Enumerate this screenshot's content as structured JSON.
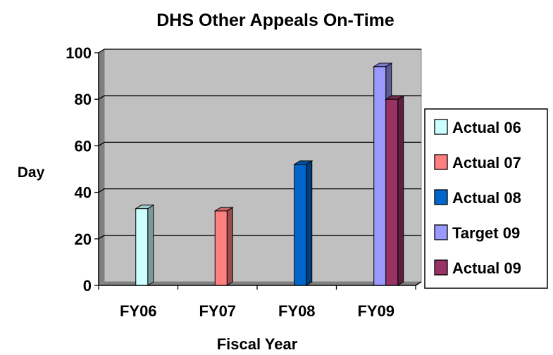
{
  "chart_data": {
    "type": "bar",
    "title": "DHS Other Appeals On-Time",
    "xlabel": "Fiscal Year",
    "ylabel": "Day",
    "ylim": [
      0,
      100
    ],
    "yticks": [
      0,
      20,
      40,
      60,
      80,
      100
    ],
    "categories": [
      "FY06",
      "FY07",
      "FY08",
      "FY09"
    ],
    "grid": true,
    "legend_position": "right",
    "series": [
      {
        "name": "Actual 06",
        "color": "#ccffff",
        "values": [
          33,
          null,
          null,
          null
        ]
      },
      {
        "name": "Actual 07",
        "color": "#ff8080",
        "values": [
          null,
          32,
          null,
          null
        ]
      },
      {
        "name": "Actual 08",
        "color": "#0066cc",
        "values": [
          null,
          null,
          52,
          null
        ]
      },
      {
        "name": "Target 09",
        "color": "#9999ff",
        "values": [
          null,
          null,
          null,
          94
        ]
      },
      {
        "name": "Actual 09",
        "color": "#993366",
        "values": [
          null,
          null,
          null,
          80
        ]
      }
    ],
    "colors": {
      "plot_background": "#c0c0c0",
      "wall_side": "#808080",
      "floor": "#808080"
    }
  }
}
